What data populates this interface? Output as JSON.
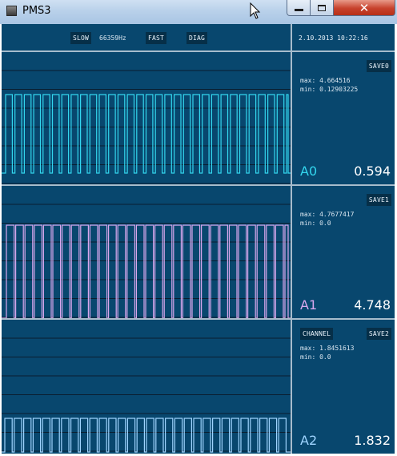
{
  "window": {
    "title": "PMS3",
    "icon": "app-icon",
    "close_icon": "close-icon",
    "minimize_icon": "minimize-icon",
    "maximize_icon": "maximize-icon"
  },
  "toolbar": {
    "slow_label": "SLOW",
    "frequency": "66359Hz",
    "fast_label": "FAST",
    "diag_label": "DIAG",
    "datetime": "2.10.2013 10:22:16"
  },
  "channels": [
    {
      "name": "A0",
      "save_label": "SAVE0",
      "max_text": "max: 4.664516",
      "min_text": "min: 0.12903225",
      "value": "0.594",
      "color": "#33d6ee",
      "channel_label": ""
    },
    {
      "name": "A1",
      "save_label": "SAVE1",
      "max_text": "max: 4.7677417",
      "min_text": "min: 0.0",
      "value": "4.748",
      "color": "#d9a8ee",
      "channel_label": ""
    },
    {
      "name": "A2",
      "save_label": "SAVE2",
      "max_text": "max: 1.8451613",
      "min_text": "min: 0.0",
      "value": "1.832",
      "color": "#9fd4ff",
      "channel_label": "CHANNEL"
    }
  ],
  "colors": {
    "panel_bg": "#08476e",
    "separator": "#a7bccc",
    "gridline": "#0a1e30"
  }
}
